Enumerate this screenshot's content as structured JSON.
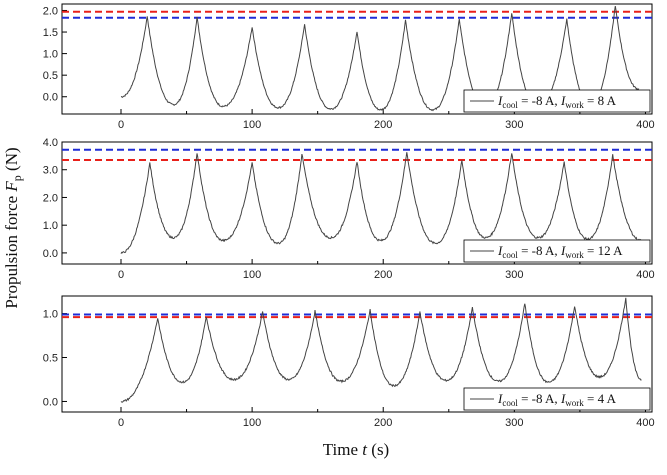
{
  "chart_data": {
    "type": "line",
    "ylabel": "Propulsion force",
    "ylabel_symbol": "F",
    "ylabel_subscript": "p",
    "ylabel_unit": "(N)",
    "xlabel": "Time",
    "xlabel_symbol": "t",
    "xlabel_unit": "(s)",
    "xlim": [
      -45,
      405
    ],
    "xticks": [
      0,
      100,
      200,
      300,
      400
    ],
    "grid": false,
    "colors": {
      "trace": "#444444",
      "red_dash": "#e8201a",
      "blue_dash": "#1f2bd6",
      "frame": "#000000"
    },
    "panels": [
      {
        "legend": {
          "cool_sym": "I",
          "cool_sub": "cool",
          "cool_val": " = -8 A, ",
          "work_sym": "I",
          "work_sub": "work",
          "work_val": " = 8 A",
          "placement": "lower-right"
        },
        "ylim": [
          -0.4,
          2.15
        ],
        "yticks": [
          "2.0",
          "1.5",
          "1.0",
          "0.5",
          "0.0"
        ],
        "ytick_values": [
          2.0,
          1.5,
          1.0,
          0.5,
          0.0
        ],
        "red_line": 1.97,
        "blue_line": 1.83,
        "series": [
          {
            "base": 0.0,
            "peaks": [
              [
                20,
                1.87
              ],
              [
                58,
                1.85
              ],
              [
                100,
                1.62
              ],
              [
                140,
                1.68
              ],
              [
                180,
                1.52
              ],
              [
                217,
                1.78
              ],
              [
                258,
                1.8
              ],
              [
                298,
                1.95
              ],
              [
                340,
                1.8
              ],
              [
                377,
                2.12
              ]
            ],
            "valleys": [
              [
                40,
                -0.18
              ],
              [
                78,
                -0.22
              ],
              [
                120,
                -0.25
              ],
              [
                160,
                -0.28
              ],
              [
                198,
                -0.3
              ],
              [
                238,
                -0.3
              ],
              [
                278,
                -0.25
              ],
              [
                318,
                -0.25
              ],
              [
                358,
                -0.18
              ]
            ],
            "end": [
              395,
              0.18
            ]
          }
        ]
      },
      {
        "legend": {
          "cool_sym": "I",
          "cool_sub": "cool",
          "cool_val": " = -8 A, ",
          "work_sym": "I",
          "work_sub": "work",
          "work_val": " = 12 A",
          "placement": "lower-right"
        },
        "ylim": [
          -0.4,
          4.0
        ],
        "yticks": [
          "4.0",
          "3.0",
          "2.0",
          "1.0",
          "0.0"
        ],
        "ytick_values": [
          4.0,
          3.0,
          2.0,
          1.0,
          0.0
        ],
        "red_line": 3.35,
        "blue_line": 3.72,
        "series": [
          {
            "base": 0.0,
            "peaks": [
              [
                22,
                3.25
              ],
              [
                58,
                3.62
              ],
              [
                100,
                3.25
              ],
              [
                138,
                3.58
              ],
              [
                180,
                3.3
              ],
              [
                218,
                3.65
              ],
              [
                260,
                3.35
              ],
              [
                298,
                3.62
              ],
              [
                338,
                3.3
              ],
              [
                375,
                3.55
              ]
            ],
            "valleys": [
              [
                40,
                0.55
              ],
              [
                78,
                0.45
              ],
              [
                120,
                0.35
              ],
              [
                160,
                0.55
              ],
              [
                198,
                0.45
              ],
              [
                240,
                0.35
              ],
              [
                278,
                0.55
              ],
              [
                318,
                0.55
              ],
              [
                356,
                0.5
              ]
            ],
            "end": [
              397,
              0.45
            ]
          }
        ]
      },
      {
        "legend": {
          "cool_sym": "I",
          "cool_sub": "cool",
          "cool_val": " = -8 A, ",
          "work_sym": "I",
          "work_sub": "work",
          "work_val": " = 4 A",
          "placement": "lower-right"
        },
        "ylim": [
          -0.12,
          1.2
        ],
        "yticks": [
          "1.0",
          "0.5",
          "0.0"
        ],
        "ytick_values": [
          1.0,
          0.5,
          0.0
        ],
        "red_line": 0.96,
        "blue_line": 0.99,
        "series": [
          {
            "base": 0.0,
            "peaks": [
              [
                28,
                0.95
              ],
              [
                65,
                0.97
              ],
              [
                108,
                1.02
              ],
              [
                148,
                1.03
              ],
              [
                190,
                1.04
              ],
              [
                228,
                1.02
              ],
              [
                268,
                1.07
              ],
              [
                308,
                1.12
              ],
              [
                346,
                1.09
              ],
              [
                385,
                1.18
              ]
            ],
            "valleys": [
              [
                47,
                0.22
              ],
              [
                86,
                0.25
              ],
              [
                128,
                0.25
              ],
              [
                168,
                0.23
              ],
              [
                208,
                0.18
              ],
              [
                248,
                0.24
              ],
              [
                288,
                0.23
              ],
              [
                326,
                0.22
              ],
              [
                365,
                0.28
              ]
            ],
            "end": [
              397,
              0.25
            ]
          }
        ]
      }
    ]
  }
}
